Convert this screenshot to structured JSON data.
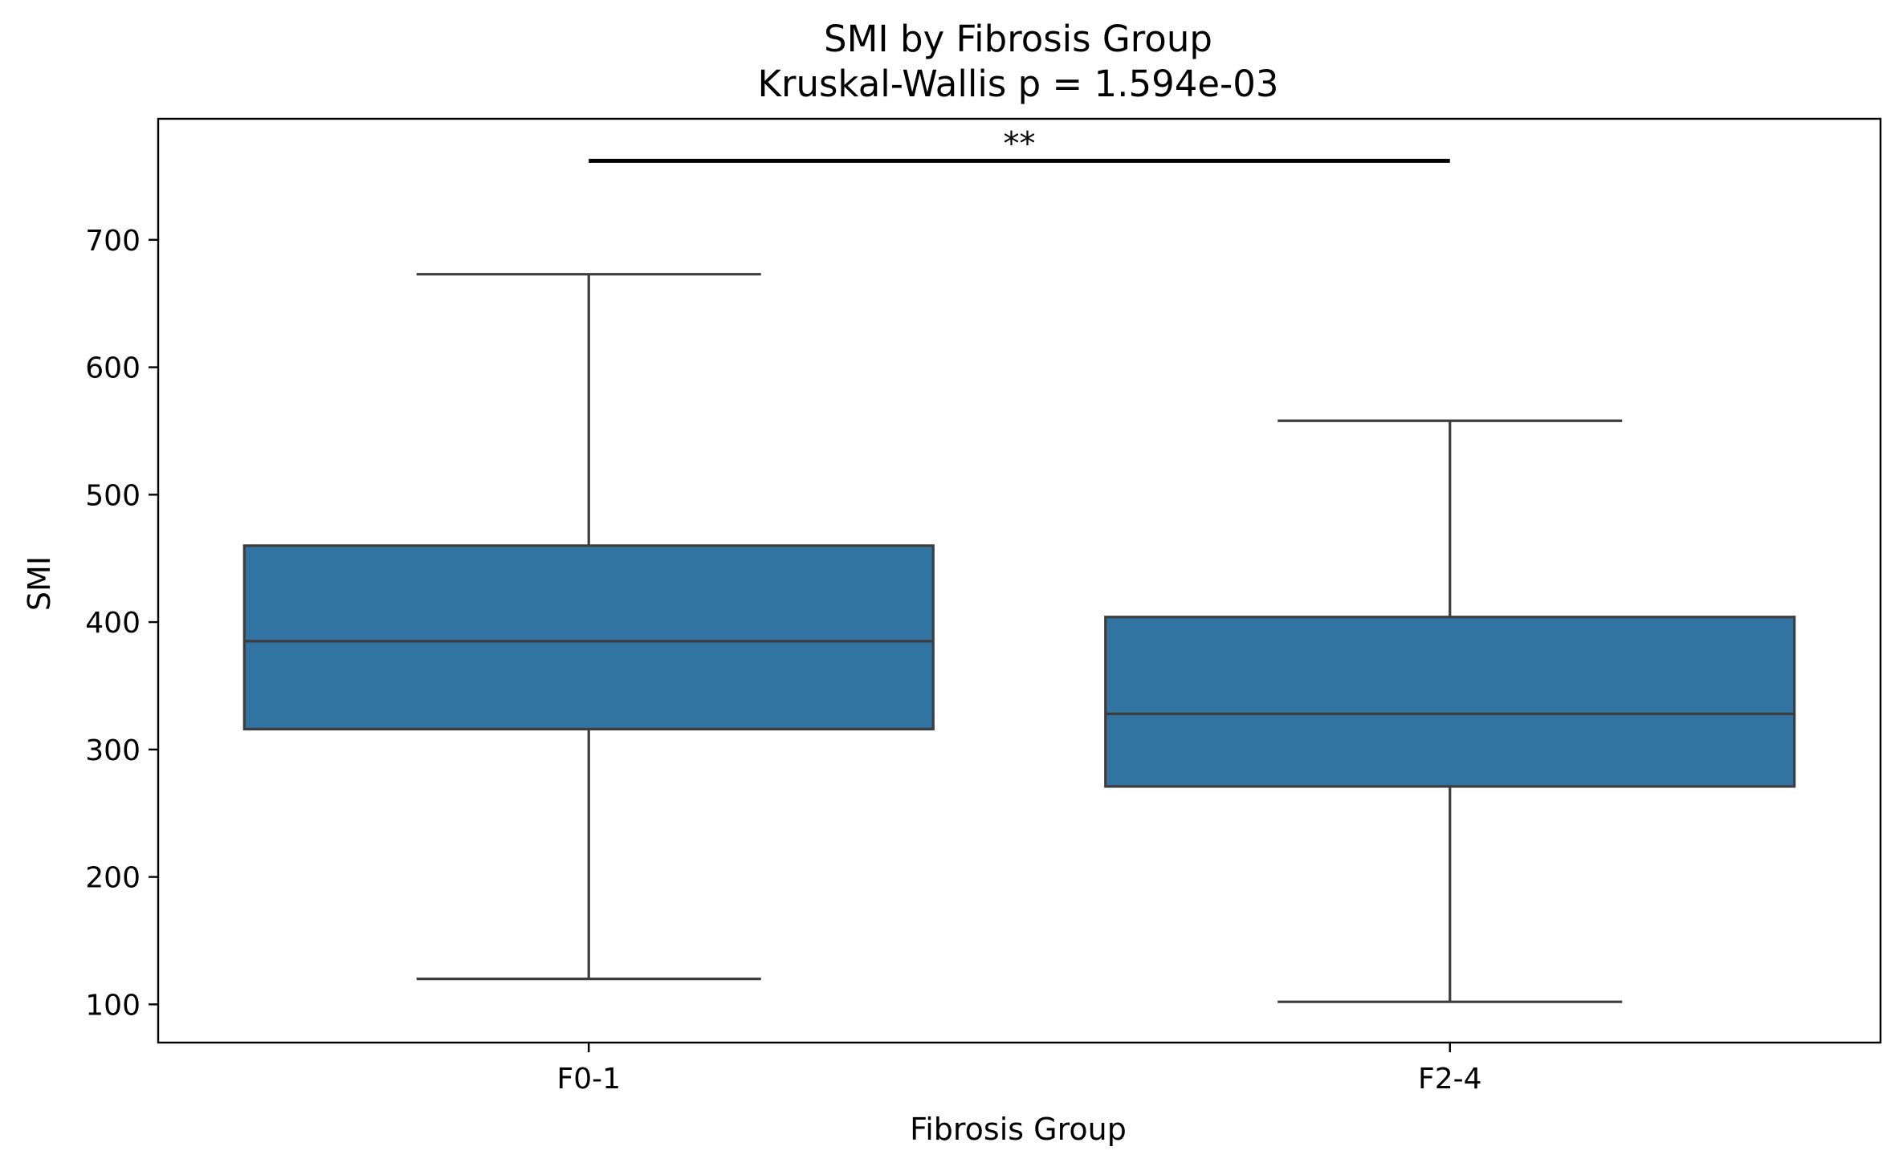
{
  "chart_data": {
    "type": "box",
    "title": "SMI by Fibrosis Group",
    "subtitle": "Kruskal-Wallis p = 1.594e-03",
    "xlabel": "Fibrosis Group",
    "ylabel": "SMI",
    "categories": [
      "F0-1",
      "F2-4"
    ],
    "boxes": [
      {
        "category": "F0-1",
        "whisker_low": 120,
        "q1": 316,
        "median": 385,
        "q3": 460,
        "whisker_high": 673
      },
      {
        "category": "F2-4",
        "whisker_low": 102,
        "q1": 271,
        "median": 328,
        "q3": 404,
        "whisker_high": 558
      }
    ],
    "ylim": [
      70,
      795
    ],
    "yticks": [
      100,
      200,
      300,
      400,
      500,
      600,
      700
    ],
    "box_color": "#3274a1",
    "line_color": "#3d3d3d",
    "grid": false,
    "significance": {
      "label": "**",
      "from": "F0-1",
      "to": "F2-4",
      "y": 762
    }
  }
}
